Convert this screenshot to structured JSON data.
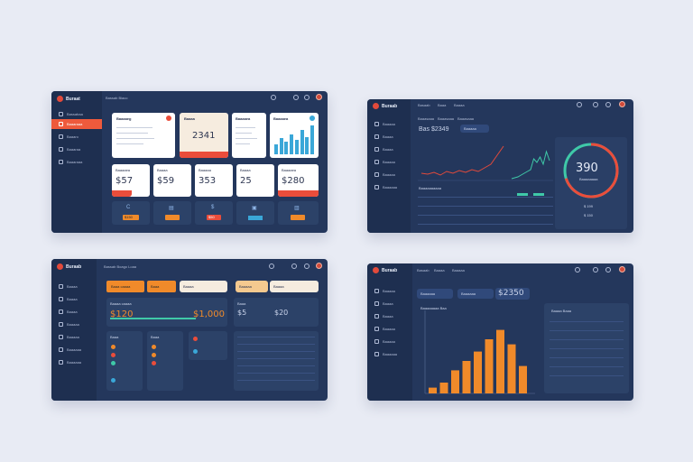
{
  "panel1": {
    "logo": "Buraat",
    "topbar_text": "Bassab Biaco",
    "nav": [
      "Bassabaa",
      "Baaaraaa",
      "Baaaro",
      "Baaaraa",
      "Baaaraaa"
    ],
    "cards_top": [
      {
        "title": "Baaaaeg",
        "value": ""
      },
      {
        "title": "Baaaa",
        "value": "2341"
      },
      {
        "title": "Baaaaea",
        "value": ""
      },
      {
        "title": "Baaaaea",
        "value": ""
      }
    ],
    "cards_mid": [
      {
        "title": "Baaaaea",
        "value": "$57"
      },
      {
        "title": "Baaaa",
        "value": "$59"
      },
      {
        "title": "Baaaaa",
        "value": "353"
      },
      {
        "title": "Baaaa",
        "value": "25"
      },
      {
        "title": "Baaaaea",
        "value": "$280"
      }
    ],
    "tiles": [
      {
        "icon": "c-icon",
        "value": "$150"
      },
      {
        "icon": "chart-icon",
        "value": ""
      },
      {
        "icon": "dollar-icon",
        "value": "$50"
      },
      {
        "icon": "bag-icon",
        "value": ""
      },
      {
        "icon": "chart-icon",
        "value": ""
      }
    ],
    "mini_bars": [
      0.35,
      0.55,
      0.45,
      0.7,
      0.5,
      0.85,
      0.6,
      1.0
    ]
  },
  "panel2": {
    "logo": "Buraab",
    "topbar_text": [
      "Basaab",
      "Baaa",
      "Baaaa"
    ],
    "nav": [
      "Baaaaa",
      "Baaaa",
      "Baaaa",
      "Baaaaa",
      "Baaaaa",
      "Baaaaaa"
    ],
    "tabs": [
      "Baaasaaa",
      "Baaasaaa",
      "Baaasaaa"
    ],
    "chart_title": "Bas $2349",
    "chip": "Baaaaa",
    "gauge_value": "390",
    "gauge_caption": "Baaaaaaaa",
    "gauge_sub": [
      "$ 199",
      "$ 150"
    ],
    "table_title": "Baaaaaaaaaa",
    "gauge_fraction": 0.7
  },
  "panel3": {
    "logo": "Buraab",
    "topbar_text": "Bassab Boago Loaa",
    "nav": [
      "Baaaa",
      "Baaaa",
      "Baaaa",
      "Baaaaa",
      "Baaaaa",
      "Baaaaaa",
      "Baaaaaa"
    ],
    "chips": [
      "Baaa caaaa",
      "Baaa",
      "Baaaa",
      "Baaaaa",
      "Baaaa"
    ],
    "card_title": "Baaaa caaaa",
    "card_values": [
      "$120",
      "$1,000"
    ],
    "small_card": {
      "title": "Baaa",
      "values": [
        "$5",
        "$20"
      ]
    },
    "list_titles": [
      "Baaa",
      "Baaa"
    ],
    "table_rows": 7,
    "progress": 0.75
  },
  "panel4": {
    "logo": "Buraab",
    "topbar_text": [
      "Basaab",
      "Baaaa",
      "Baaaaa"
    ],
    "nav": [
      "Baaaaa",
      "Baaaa",
      "Baaaa",
      "Baaaaa",
      "Baaaaa",
      "Baaaaaa"
    ],
    "tabs": [
      "Baaaaaa",
      "Baaaaaa"
    ],
    "header_value": "$2350",
    "chart_title": "Baaaaaaaa Baa",
    "right_title": "Baaaa Baaa",
    "bars": [
      0.08,
      0.15,
      0.32,
      0.45,
      0.58,
      0.75,
      0.88,
      0.68,
      0.38
    ],
    "table_rows": 7
  },
  "colors": {
    "accent_orange": "#f08a2a",
    "accent_red": "#ea4d3b",
    "accent_teal": "#3fc9a8",
    "panel": "#24375c"
  }
}
